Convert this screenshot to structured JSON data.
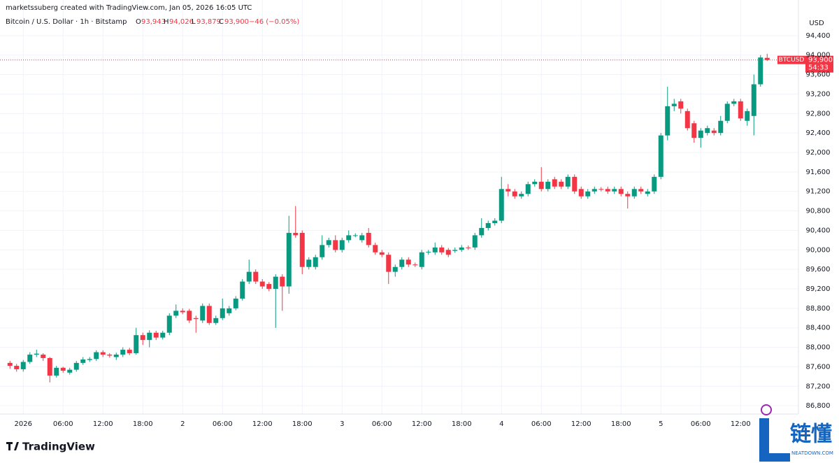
{
  "header": {
    "credit": "marketssuberg created with TradingView.com, Jan 05, 2026 16:05 UTC",
    "symbol": "Bitcoin / U.S. Dollar · 1h · Bitstamp",
    "o_key": "O",
    "o": "93,943",
    "h_key": "H",
    "h": "94,026",
    "l_key": "L",
    "l": "93,879",
    "c_key": "C",
    "c": "93,900",
    "change": "−46 (−0.05%)"
  },
  "badge": {
    "ticker": "BTCUSD",
    "price": "93,900",
    "countdown": "54:33"
  },
  "footer": {
    "logo": "TradingView"
  },
  "watermark": {
    "name": "链懂",
    "site": "NEATDOWN.COM"
  },
  "chart_data": {
    "type": "candlestick",
    "currency": "USD",
    "up_color": "#089981",
    "down_color": "#f23645",
    "grid": true,
    "open": [
      87680,
      87620,
      87550,
      87700,
      87850,
      87850,
      87780,
      87420,
      87580,
      87480,
      87540,
      87680,
      87740,
      87760,
      87900,
      87850,
      87800,
      87850,
      87950,
      87880,
      88250,
      88150,
      88300,
      88200,
      88300,
      88650,
      88750,
      88750,
      88600,
      88550,
      88850,
      88500,
      88600,
      88700,
      88800,
      89000,
      89350,
      89550,
      89350,
      89300,
      89200,
      89450,
      89250,
      90350,
      90350,
      89650,
      89650,
      89850,
      90100,
      90200,
      90000,
      90200,
      90300,
      90200,
      90350,
      90100,
      89950,
      89900,
      89550,
      89650,
      89800,
      89700,
      89650,
      89950,
      89950,
      90050,
      90000,
      89980,
      90000,
      90050,
      90050,
      90300,
      90450,
      90550,
      90600,
      91250,
      91200,
      91100,
      91150,
      91350,
      91400,
      91250,
      91450,
      91400,
      91300,
      91500,
      91250,
      91100,
      91200,
      91250,
      91250,
      91200,
      91250,
      91150,
      91100,
      91250,
      91150,
      91200,
      91500,
      92350,
      92950,
      93050,
      92850,
      92600,
      92300,
      92400,
      92450,
      92400,
      92650,
      93000,
      93050,
      92650,
      92750,
      93400,
      93943
    ],
    "high": [
      87720,
      87660,
      87740,
      87900,
      87950,
      87880,
      87800,
      87620,
      87600,
      87580,
      87720,
      87800,
      87800,
      87940,
      87940,
      87880,
      87890,
      88000,
      87990,
      88400,
      88300,
      88350,
      88340,
      88340,
      88700,
      88880,
      88800,
      88790,
      88650,
      88900,
      88900,
      88650,
      89000,
      88850,
      89050,
      89400,
      89800,
      89600,
      89400,
      89340,
      89500,
      89500,
      90700,
      90900,
      90400,
      89850,
      89900,
      90300,
      90250,
      90300,
      90250,
      90400,
      90340,
      90350,
      90450,
      90150,
      90000,
      89950,
      89700,
      89850,
      89850,
      89740,
      90000,
      90000,
      90150,
      90100,
      90040,
      90050,
      90100,
      90090,
      90350,
      90650,
      90600,
      90650,
      91500,
      91350,
      91250,
      91200,
      91400,
      91450,
      91700,
      91450,
      91500,
      91450,
      91550,
      91550,
      91300,
      91250,
      91300,
      91290,
      91300,
      91300,
      91300,
      91200,
      91300,
      91300,
      91250,
      91550,
      92400,
      93350,
      93100,
      93100,
      92900,
      92650,
      92500,
      92550,
      92500,
      92750,
      93050,
      93100,
      93100,
      92900,
      93600,
      94000,
      94026
    ],
    "low": [
      87560,
      87500,
      87500,
      87660,
      87800,
      87720,
      87280,
      87380,
      87480,
      87440,
      87500,
      87640,
      87700,
      87720,
      87800,
      87790,
      87740,
      87800,
      87840,
      87850,
      88050,
      88000,
      88150,
      88160,
      88250,
      88600,
      88680,
      88500,
      88300,
      88500,
      88460,
      88460,
      88560,
      88650,
      88760,
      88960,
      89300,
      89300,
      89200,
      89150,
      88400,
      88750,
      89100,
      90250,
      89500,
      89600,
      89600,
      89800,
      90050,
      89950,
      89950,
      90150,
      90260,
      90150,
      90050,
      89900,
      89850,
      89300,
      89450,
      89600,
      89650,
      89650,
      89600,
      89900,
      89900,
      89900,
      89850,
      89940,
      89960,
      90000,
      90000,
      90250,
      90400,
      90500,
      90550,
      91100,
      91050,
      91050,
      91100,
      91300,
      91200,
      91200,
      91250,
      91250,
      91250,
      91150,
      91050,
      91050,
      91150,
      91200,
      91150,
      91150,
      91100,
      90850,
      91050,
      91150,
      91100,
      91150,
      91450,
      92250,
      92850,
      92800,
      92450,
      92200,
      92100,
      92350,
      92350,
      92350,
      92600,
      92950,
      92650,
      92550,
      92350,
      93350,
      93879
    ],
    "close": [
      87620,
      87550,
      87700,
      87850,
      87870,
      87780,
      87420,
      87580,
      87520,
      87540,
      87680,
      87750,
      87760,
      87900,
      87850,
      87830,
      87850,
      87950,
      87880,
      88250,
      88150,
      88300,
      88200,
      88300,
      88650,
      88750,
      88720,
      88550,
      88580,
      88850,
      88500,
      88600,
      88800,
      88800,
      89000,
      89350,
      89550,
      89350,
      89250,
      89200,
      89450,
      89250,
      90350,
      90300,
      89650,
      89800,
      89850,
      90100,
      90200,
      90000,
      90200,
      90300,
      90300,
      90300,
      90100,
      89950,
      89900,
      89550,
      89650,
      89800,
      89700,
      89690,
      89950,
      89960,
      90050,
      89950,
      89900,
      90000,
      90050,
      90040,
      90300,
      90450,
      90550,
      90600,
      91250,
      91200,
      91100,
      91150,
      91350,
      91400,
      91250,
      91400,
      91300,
      91300,
      91500,
      91200,
      91100,
      91200,
      91250,
      91240,
      91200,
      91250,
      91150,
      91100,
      91250,
      91200,
      91200,
      91500,
      92350,
      92950,
      93000,
      92900,
      92500,
      92300,
      92450,
      92500,
      92400,
      92650,
      93000,
      93050,
      92700,
      92850,
      93400,
      93950,
      93900
    ],
    "xlim": [
      -1.5,
      118.5
    ],
    "xticks": [
      {
        "value": 2,
        "label": "2026"
      },
      {
        "value": 8,
        "label": "06:00"
      },
      {
        "value": 14,
        "label": "12:00"
      },
      {
        "value": 20,
        "label": "18:00"
      },
      {
        "value": 26,
        "label": "2"
      },
      {
        "value": 32,
        "label": "06:00"
      },
      {
        "value": 38,
        "label": "12:00"
      },
      {
        "value": 44,
        "label": "18:00"
      },
      {
        "value": 50,
        "label": "3"
      },
      {
        "value": 56,
        "label": "06:00"
      },
      {
        "value": 62,
        "label": "12:00"
      },
      {
        "value": 68,
        "label": "18:00"
      },
      {
        "value": 74,
        "label": "4"
      },
      {
        "value": 80,
        "label": "06:00"
      },
      {
        "value": 86,
        "label": "12:00"
      },
      {
        "value": 92,
        "label": "18:00"
      },
      {
        "value": 98,
        "label": "5"
      },
      {
        "value": 104,
        "label": "06:00"
      },
      {
        "value": 110,
        "label": "12:00"
      }
    ],
    "ylim": [
      86630,
      94700
    ],
    "yticks": [
      {
        "value": 86800,
        "label": "86,800"
      },
      {
        "value": 87200,
        "label": "87,200"
      },
      {
        "value": 87600,
        "label": "87,600"
      },
      {
        "value": 88000,
        "label": "88,000"
      },
      {
        "value": 88400,
        "label": "88,400"
      },
      {
        "value": 88800,
        "label": "88,800"
      },
      {
        "value": 89200,
        "label": "89,200"
      },
      {
        "value": 89600,
        "label": "89,600"
      },
      {
        "value": 90000,
        "label": "90,000"
      },
      {
        "value": 90400,
        "label": "90,400"
      },
      {
        "value": 90800,
        "label": "90,800"
      },
      {
        "value": 91200,
        "label": "91,200"
      },
      {
        "value": 91600,
        "label": "91,600"
      },
      {
        "value": 92000,
        "label": "92,000"
      },
      {
        "value": 92400,
        "label": "92,400"
      },
      {
        "value": 92800,
        "label": "92,800"
      },
      {
        "value": 93200,
        "label": "93,200"
      },
      {
        "value": 93600,
        "label": "93,600"
      },
      {
        "value": 94000,
        "label": "94,000"
      },
      {
        "value": 94400,
        "label": "94,400"
      }
    ]
  }
}
